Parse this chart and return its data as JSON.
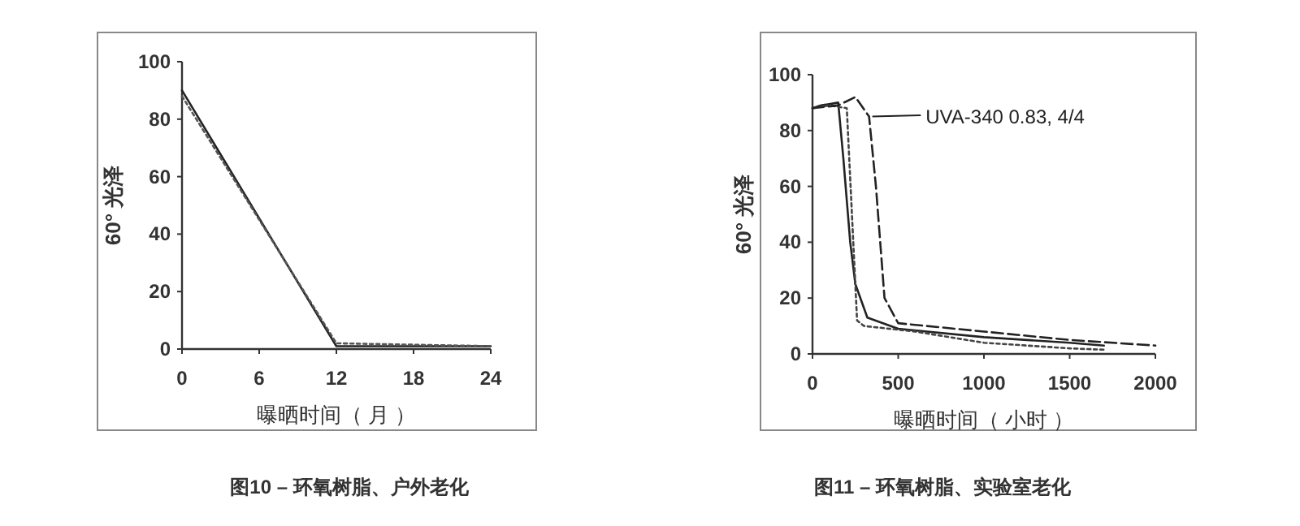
{
  "chart_data": [
    {
      "type": "line",
      "xlabel": "曝晒时间（ 月 ）",
      "ylabel": "60° 光泽",
      "annotations": [
        "图10 – 环氧树脂、户外老化"
      ],
      "xlim": [
        0,
        24
      ],
      "ylim": [
        0,
        100
      ],
      "xticks": [
        0,
        6,
        12,
        18,
        24
      ],
      "yticks": [
        0,
        20,
        40,
        60,
        80,
        100
      ],
      "series": [
        {
          "color": "#222222",
          "line_style": "solid",
          "x": [
            0,
            12,
            24
          ],
          "values": [
            90,
            1,
            1
          ]
        },
        {
          "color": "#555555",
          "line_style": "dotted",
          "x": [
            0,
            12,
            24
          ],
          "values": [
            88,
            2,
            1
          ]
        }
      ]
    },
    {
      "type": "line",
      "xlabel": "曝晒时间（ 小时 ）",
      "ylabel": "60° 光泽",
      "annotations": [
        "图11 – 环氧树脂、实验室老化"
      ],
      "xlim": [
        0,
        2000
      ],
      "ylim": [
        0,
        100
      ],
      "xticks": [
        0,
        500,
        1000,
        1500,
        2000
      ],
      "yticks": [
        0,
        20,
        40,
        60,
        80,
        100
      ],
      "series": [
        {
          "color": "#222222",
          "line_style": "solid",
          "x": [
            0,
            50,
            150,
            180,
            220,
            250,
            320,
            500,
            1000,
            1500,
            1700
          ],
          "values": [
            88,
            89,
            90,
            70,
            40,
            25,
            13,
            9,
            6,
            4,
            3
          ]
        },
        {
          "color": "#444444",
          "line_style": "dotted",
          "x": [
            0,
            100,
            200,
            230,
            260,
            300,
            600,
            1000,
            1500,
            1700
          ],
          "values": [
            88,
            89,
            88,
            50,
            12,
            10,
            8,
            4,
            2,
            1.5
          ]
        },
        {
          "name": "UVA-340  0.83,  4/4",
          "color": "#222222",
          "line_style": "dashed",
          "x": [
            0,
            150,
            250,
            330,
            370,
            420,
            500,
            1000,
            1500,
            2000
          ],
          "values": [
            88,
            89,
            92,
            85,
            60,
            20,
            11,
            8,
            5,
            3
          ]
        }
      ]
    }
  ]
}
